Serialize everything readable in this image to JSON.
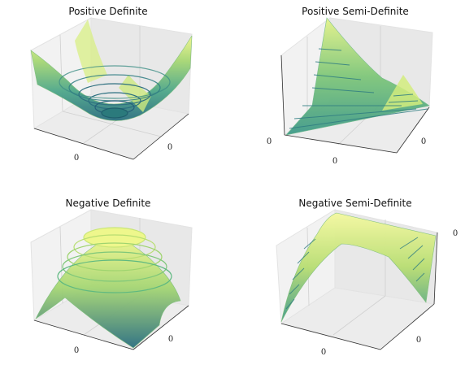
{
  "chart_data": [
    {
      "type": "surface3d",
      "title": "Positive Definite",
      "z_sign": 1,
      "shape": "bowl",
      "x_tick_labels": [
        "0"
      ],
      "y_tick_labels": [
        "0"
      ],
      "z_tick_labels": [],
      "colormap": [
        "#2b6f80",
        "#3f9a8a",
        "#6fc07d",
        "#b8de72",
        "#f0f78e"
      ]
    },
    {
      "type": "surface3d",
      "title": "Positive Semi-Definite",
      "z_sign": 1,
      "shape": "valley",
      "x_tick_labels": [
        "0"
      ],
      "y_tick_labels": [
        "0"
      ],
      "z_tick_labels": [
        "0"
      ],
      "colormap": [
        "#2b6f80",
        "#3f9a8a",
        "#6fc07d",
        "#b8de72",
        "#f0f78e"
      ]
    },
    {
      "type": "surface3d",
      "title": "Negative Definite",
      "z_sign": -1,
      "shape": "dome",
      "x_tick_labels": [
        "0"
      ],
      "y_tick_labels": [
        "0"
      ],
      "z_tick_labels": [],
      "colormap": [
        "#2b6f80",
        "#3f9a8a",
        "#6fc07d",
        "#b8de72",
        "#f0f78e"
      ]
    },
    {
      "type": "surface3d",
      "title": "Negative Semi-Definite",
      "z_sign": -1,
      "shape": "ridge",
      "x_tick_labels": [
        "0"
      ],
      "y_tick_labels": [
        "0"
      ],
      "z_tick_labels": [
        "0"
      ],
      "colormap": [
        "#2b6f80",
        "#3f9a8a",
        "#6fc07d",
        "#b8de72",
        "#f0f78e"
      ]
    }
  ]
}
